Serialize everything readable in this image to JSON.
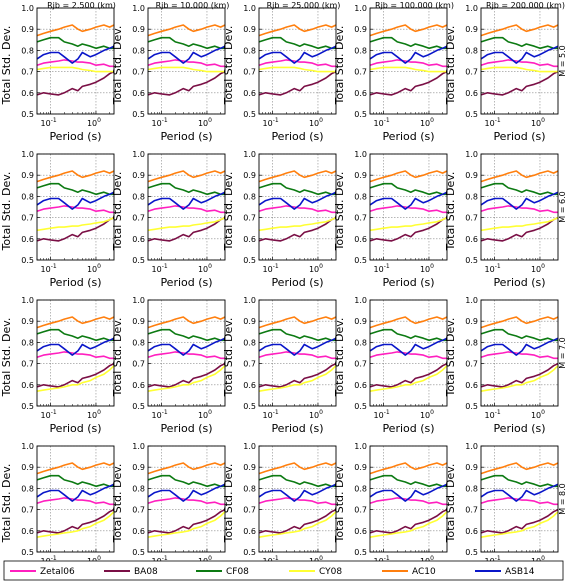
{
  "figure": {
    "col_titles": [
      "Rjb =    2.500 (km)",
      "Rjb =   10.000 (km)",
      "Rjb =   25.000 (km)",
      "Rjb =  100.000 (km)",
      "Rjb =  200.000 (km)"
    ],
    "row_labels": [
      "M = 5.0",
      "M = 6.0",
      "M = 7.0",
      "M = 8.0"
    ],
    "xlabel": "Period (s)",
    "ylabel": "Total Std. Dev.",
    "yticks": [
      "0.5",
      "0.6",
      "0.7",
      "0.8",
      "0.9",
      "1.0"
    ],
    "xtick_base": "10",
    "xtick_exps": [
      "-1",
      "0"
    ]
  },
  "legend": {
    "placement": "bottom",
    "entries": [
      {
        "name": "Zetal06",
        "color": "#ff1fbf"
      },
      {
        "name": "BA08",
        "color": "#7a0f45"
      },
      {
        "name": "CF08",
        "color": "#0c7a12"
      },
      {
        "name": "CY08",
        "color": "#ffff33"
      },
      {
        "name": "AC10",
        "color": "#ff7f0e"
      },
      {
        "name": "ASB14",
        "color": "#0a16c9"
      }
    ]
  },
  "chart_data": {
    "type": "line",
    "grid": true,
    "xscale": "log",
    "xlim": [
      0.05,
      2.5
    ],
    "ylim": [
      0.5,
      1.0
    ],
    "x": [
      0.05,
      0.07,
      0.1,
      0.15,
      0.2,
      0.3,
      0.4,
      0.5,
      0.75,
      1.0,
      1.5,
      2.0,
      2.5
    ],
    "series_common": {
      "Zetal06": [
        0.73,
        0.74,
        0.745,
        0.75,
        0.755,
        0.75,
        0.745,
        0.745,
        0.74,
        0.73,
        0.735,
        0.725,
        0.725
      ],
      "BA08": [
        0.59,
        0.6,
        0.595,
        0.59,
        0.6,
        0.62,
        0.61,
        0.63,
        0.64,
        0.65,
        0.67,
        0.69,
        0.7
      ],
      "CF08": [
        0.84,
        0.85,
        0.86,
        0.86,
        0.84,
        0.83,
        0.82,
        0.83,
        0.82,
        0.81,
        0.82,
        0.81,
        0.81
      ],
      "AC10": [
        0.87,
        0.88,
        0.89,
        0.9,
        0.91,
        0.92,
        0.9,
        0.89,
        0.9,
        0.91,
        0.92,
        0.91,
        0.92
      ],
      "ASB14": [
        0.76,
        0.78,
        0.79,
        0.79,
        0.77,
        0.74,
        0.76,
        0.79,
        0.77,
        0.78,
        0.8,
        0.81,
        0.82
      ]
    },
    "series_cy08_by_row": [
      {
        "row": "M = 5.0",
        "values": [
          0.71,
          0.715,
          0.72,
          0.72,
          0.72,
          0.72,
          0.715,
          0.71,
          0.705,
          0.7,
          0.7,
          0.7,
          0.7
        ]
      },
      {
        "row": "M = 6.0",
        "values": [
          0.64,
          0.645,
          0.65,
          0.655,
          0.655,
          0.66,
          0.66,
          0.665,
          0.67,
          0.675,
          0.68,
          0.69,
          0.7
        ]
      },
      {
        "row": "M = 7.0",
        "values": [
          0.57,
          0.575,
          0.58,
          0.585,
          0.59,
          0.6,
          0.6,
          0.61,
          0.62,
          0.635,
          0.65,
          0.67,
          0.69
        ]
      },
      {
        "row": "M = 8.0",
        "values": [
          0.57,
          0.575,
          0.58,
          0.585,
          0.59,
          0.595,
          0.6,
          0.61,
          0.62,
          0.635,
          0.65,
          0.67,
          0.69
        ]
      }
    ]
  }
}
